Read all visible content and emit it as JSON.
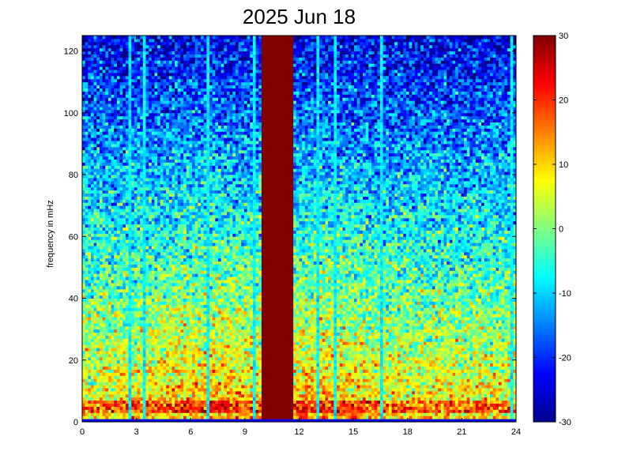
{
  "chart_data": {
    "type": "heatmap",
    "title": "2025 Jun 18",
    "xlabel": "",
    "ylabel": "frequency in mHz",
    "xlim": [
      0,
      24
    ],
    "ylim": [
      0,
      125
    ],
    "x_ticks": [
      "0",
      "3",
      "6",
      "9",
      "12",
      "15",
      "18",
      "21",
      "24"
    ],
    "y_ticks": [
      "0",
      "20",
      "40",
      "60",
      "80",
      "100",
      "120"
    ],
    "colorbar": {
      "colormap": "jet",
      "range": [
        -30,
        30
      ],
      "ticks": [
        "30",
        "20",
        "10",
        "0",
        "-10",
        "-20",
        "-30"
      ]
    },
    "grid": false,
    "features": {
      "low_freq_band_mHz": 5,
      "midday_saturated_band_hours": [
        10.0,
        11.7
      ],
      "vertical_streak_hours": [
        2.7,
        3.4,
        7.0,
        9.5,
        13.0,
        14.0,
        16.5,
        23.7
      ]
    }
  }
}
